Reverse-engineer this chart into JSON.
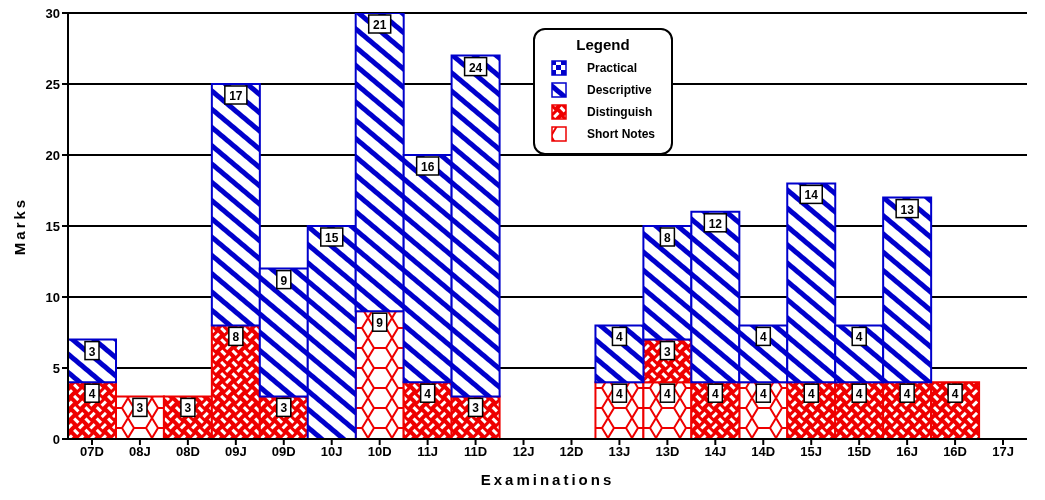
{
  "chart_data": {
    "type": "bar",
    "stacked": true,
    "xlabel": "Examinations",
    "ylabel": "Marks",
    "legend_title": "Legend",
    "categories": [
      "07D",
      "08J",
      "08D",
      "09J",
      "09D",
      "10J",
      "10D",
      "11J",
      "11D",
      "12J",
      "12D",
      "13J",
      "13D",
      "14J",
      "14D",
      "15J",
      "15D",
      "16J",
      "16D",
      "17J"
    ],
    "series": [
      {
        "name": "Short Notes",
        "color": "#ee0000",
        "values": [
          null,
          3,
          null,
          null,
          null,
          null,
          9,
          null,
          null,
          null,
          null,
          4,
          4,
          null,
          4,
          null,
          null,
          null,
          null,
          null
        ]
      },
      {
        "name": "Distinguish",
        "color": "#ee0000",
        "values": [
          4,
          null,
          3,
          8,
          3,
          null,
          null,
          4,
          3,
          null,
          null,
          null,
          3,
          4,
          null,
          4,
          4,
          4,
          4,
          null
        ]
      },
      {
        "name": "Descriptive",
        "color": "#0000cc",
        "values": [
          3,
          null,
          null,
          17,
          9,
          15,
          21,
          16,
          24,
          null,
          null,
          4,
          8,
          12,
          4,
          14,
          4,
          13,
          null,
          null
        ]
      },
      {
        "name": "Practical",
        "color": "#0000cc",
        "values": [
          null,
          null,
          null,
          null,
          null,
          null,
          null,
          null,
          null,
          null,
          null,
          null,
          null,
          null,
          null,
          null,
          null,
          null,
          null,
          null
        ]
      }
    ],
    "ylim": [
      0,
      30
    ],
    "yticks": [
      0,
      5,
      10,
      15,
      20,
      25,
      30
    ],
    "grid": "y",
    "legend": "top",
    "data_labels": true
  }
}
